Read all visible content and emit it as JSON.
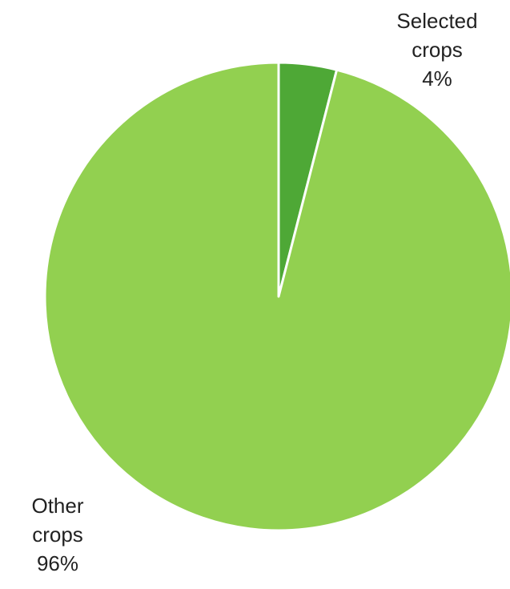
{
  "chart_data": {
    "type": "pie",
    "title": "",
    "categories": [
      "Selected crops",
      "Other crops"
    ],
    "values": [
      4,
      96
    ],
    "colors": [
      "#4ea836",
      "#92d050"
    ],
    "data_labels": [
      {
        "line1": "Selected",
        "line2": "crops",
        "line3": "4%"
      },
      {
        "line1": "Other",
        "line2": "crops",
        "line3": "96%"
      }
    ],
    "start_angle_deg": 0,
    "direction": "clockwise",
    "legend": "none"
  }
}
